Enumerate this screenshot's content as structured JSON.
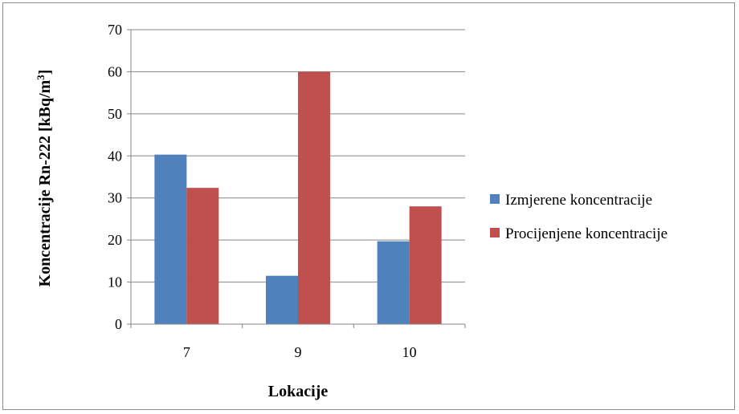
{
  "chart_data": {
    "type": "bar",
    "xlabel": "Lokacije",
    "ylabel_main": "Koncentracije Rn-222 [kBq/m",
    "ylabel_sup": "3",
    "ylabel_end": "]",
    "categories": [
      "7",
      "9",
      "10"
    ],
    "series": [
      {
        "name": "Izmjerene koncentracije",
        "values": [
          40.3,
          11.5,
          19.7
        ],
        "color": "#4f81bd"
      },
      {
        "name": "Procijenjene koncentracije",
        "values": [
          32.4,
          60.0,
          28.0
        ],
        "color": "#c0504d"
      }
    ],
    "ylim": [
      0,
      70
    ],
    "yticks": [
      0,
      10,
      20,
      30,
      40,
      50,
      60,
      70
    ],
    "grid": true,
    "legend_position": "right"
  }
}
